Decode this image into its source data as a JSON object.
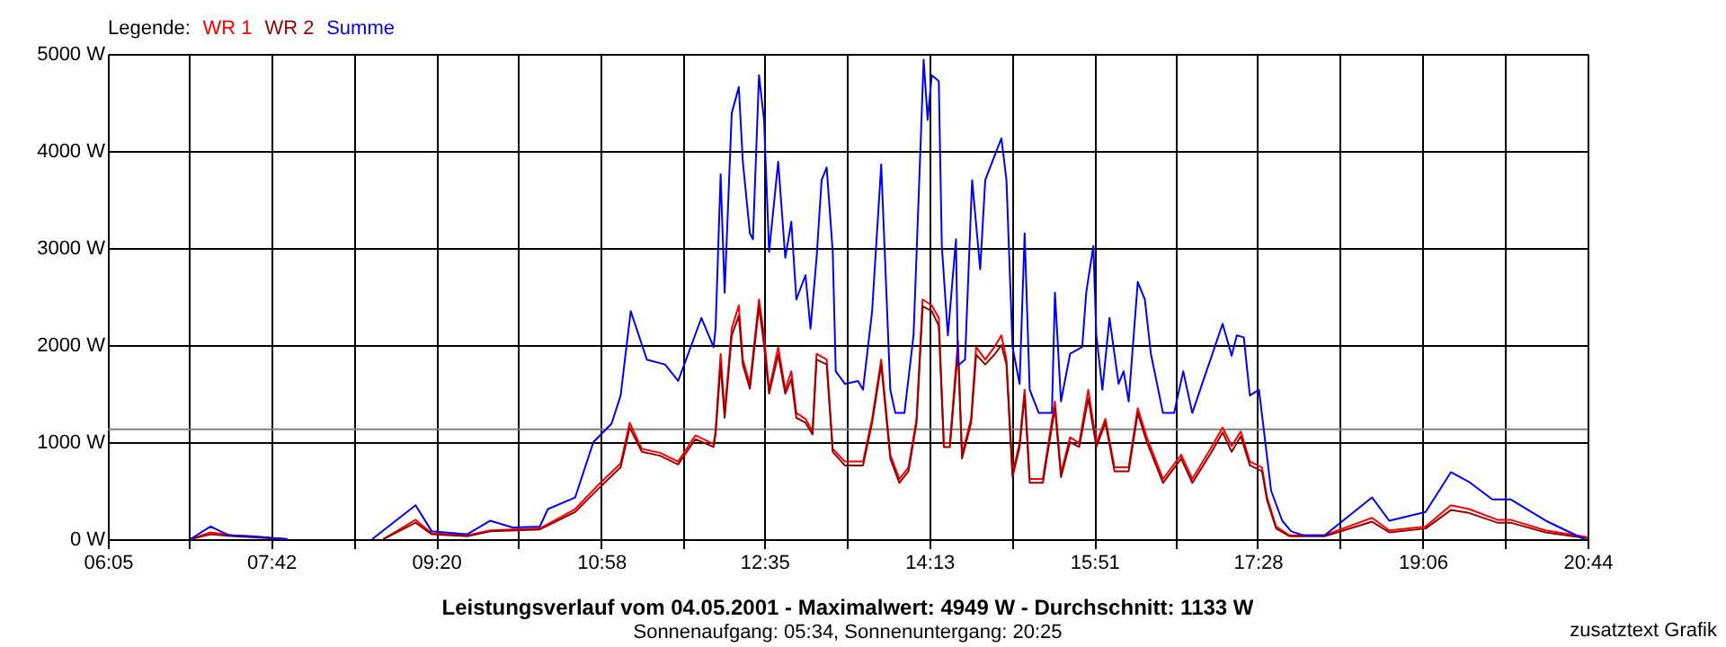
{
  "chart_data": {
    "type": "line",
    "title": "Leistungsverlauf vom 04.05.2001 - Maximalwert: 4949 W - Durchschnitt: 1133 W",
    "subtitle": "Sonnenaufgang: 05:34, Sonnenuntergang: 20:25",
    "legend_title": "Legende:",
    "annotations": [
      "zusatztext Grafik"
    ],
    "xlim": [
      6.0833,
      20.7333
    ],
    "xticks": [
      {
        "value": 6.0833,
        "label": "06:05"
      },
      {
        "value": 6.8917,
        "label": null
      },
      {
        "value": 7.7,
        "label": "07:42"
      },
      {
        "value": 8.5167,
        "label": null
      },
      {
        "value": 9.3333,
        "label": "09:20"
      },
      {
        "value": 10.15,
        "label": null
      },
      {
        "value": 10.9667,
        "label": "10:58"
      },
      {
        "value": 11.775,
        "label": null
      },
      {
        "value": 12.5833,
        "label": "12:35"
      },
      {
        "value": 13.4,
        "label": null
      },
      {
        "value": 14.2167,
        "label": "14:13"
      },
      {
        "value": 15.0333,
        "label": null
      },
      {
        "value": 15.85,
        "label": "15:51"
      },
      {
        "value": 16.6583,
        "label": null
      },
      {
        "value": 17.4667,
        "label": "17:28"
      },
      {
        "value": 18.2833,
        "label": null
      },
      {
        "value": 19.1,
        "label": "19:06"
      },
      {
        "value": 19.9167,
        "label": null
      },
      {
        "value": 20.7333,
        "label": "20:44"
      }
    ],
    "ylim": [
      0,
      5000
    ],
    "yticks": [
      {
        "value": 0,
        "label": "0 W"
      },
      {
        "value": 1000,
        "label": "1000 W"
      },
      {
        "value": 2000,
        "label": "2000 W"
      },
      {
        "value": 3000,
        "label": "3000 W"
      },
      {
        "value": 4000,
        "label": "4000 W"
      },
      {
        "value": 5000,
        "label": "5000 W"
      }
    ],
    "grid": true,
    "legend": "top left",
    "marker": "none",
    "line_style": "solid",
    "ref_lines": [
      {
        "axis": "y",
        "value": 1133,
        "color": "#808080"
      }
    ],
    "series": [
      {
        "name": "WR 1",
        "color": "#ff0000",
        "x": [
          6.9,
          7.1,
          7.33,
          7.86,
          8.3,
          8.81,
          9.13,
          9.29,
          9.64,
          9.87,
          10.36,
          10.71,
          10.94,
          11.16,
          11.25,
          11.37,
          11.55,
          11.73,
          11.9,
          12.08,
          12.1,
          12.15,
          12.19,
          12.26,
          12.33,
          12.37,
          12.44,
          12.53,
          12.58,
          12.63,
          12.72,
          12.79,
          12.85,
          12.9,
          12.99,
          13.06,
          13.1,
          13.2,
          13.26,
          13.38,
          13.56,
          13.65,
          13.74,
          13.83,
          13.92,
          14.01,
          14.09,
          14.15,
          14.24,
          14.31,
          14.36,
          14.42,
          14.5,
          14.54,
          14.63,
          14.68,
          14.77,
          14.86,
          14.93,
          14.98,
          15.04,
          15.11,
          15.16,
          15.21,
          15.34,
          15.46,
          15.52,
          15.61,
          15.7,
          15.79,
          15.87,
          15.96,
          16.05,
          16.19,
          16.28,
          16.37,
          16.53,
          16.71,
          16.82,
          17.0,
          17.12,
          17.21,
          17.3,
          17.39,
          17.51,
          17.56,
          17.65,
          17.78,
          18.13,
          18.6,
          18.77,
          19.13,
          19.38,
          19.56,
          19.84,
          19.97,
          20.32,
          20.73
        ],
        "values": [
          0,
          70,
          40,
          0,
          null,
          0,
          200,
          60,
          40,
          90,
          110,
          310,
          560,
          780,
          1200,
          930,
          890,
          800,
          1070,
          980,
          1110,
          1910,
          1300,
          2170,
          2410,
          1850,
          1600,
          2470,
          2100,
          1540,
          1980,
          1540,
          1730,
          1300,
          1240,
          1110,
          1910,
          1850,
          930,
          800,
          800,
          1240,
          1850,
          870,
          620,
          740,
          1240,
          2470,
          2410,
          2280,
          990,
          990,
          2040,
          870,
          1240,
          1980,
          1850,
          1980,
          2100,
          1850,
          680,
          990,
          1540,
          620,
          620,
          1420,
          680,
          1050,
          990,
          1540,
          990,
          1240,
          740,
          740,
          1350,
          1050,
          620,
          870,
          620,
          930,
          1150,
          960,
          1110,
          800,
          740,
          430,
          130,
          40,
          40,
          220,
          90,
          130,
          350,
          310,
          200,
          200,
          90,
          20
        ]
      },
      {
        "name": "WR 2",
        "color": "#990000",
        "x": [
          6.9,
          7.1,
          7.33,
          7.86,
          8.3,
          8.81,
          9.13,
          9.29,
          9.64,
          9.87,
          10.36,
          10.71,
          10.94,
          11.16,
          11.25,
          11.37,
          11.55,
          11.73,
          11.9,
          12.08,
          12.1,
          12.15,
          12.19,
          12.26,
          12.33,
          12.37,
          12.44,
          12.53,
          12.58,
          12.63,
          12.72,
          12.79,
          12.85,
          12.9,
          12.99,
          13.06,
          13.1,
          13.2,
          13.26,
          13.38,
          13.56,
          13.65,
          13.74,
          13.83,
          13.92,
          14.01,
          14.09,
          14.15,
          14.24,
          14.31,
          14.36,
          14.42,
          14.5,
          14.54,
          14.63,
          14.68,
          14.77,
          14.86,
          14.93,
          14.98,
          15.04,
          15.11,
          15.16,
          15.21,
          15.34,
          15.46,
          15.52,
          15.61,
          15.7,
          15.79,
          15.87,
          15.96,
          16.05,
          16.19,
          16.28,
          16.37,
          16.53,
          16.71,
          16.82,
          17.0,
          17.12,
          17.21,
          17.3,
          17.39,
          17.51,
          17.56,
          17.65,
          17.78,
          18.13,
          18.6,
          18.77,
          19.13,
          19.38,
          19.56,
          19.84,
          19.97,
          20.32,
          20.73
        ],
        "values": [
          0,
          50,
          30,
          0,
          null,
          0,
          170,
          50,
          30,
          80,
          100,
          280,
          520,
          740,
          1150,
          900,
          860,
          770,
          1030,
          950,
          1080,
          1800,
          1250,
          2100,
          2300,
          1800,
          1550,
          2400,
          2000,
          1500,
          1900,
          1500,
          1650,
          1250,
          1200,
          1080,
          1850,
          1800,
          900,
          760,
          760,
          1200,
          1800,
          830,
          580,
          700,
          1200,
          2400,
          2350,
          2200,
          950,
          950,
          1950,
          830,
          1200,
          1900,
          1800,
          1900,
          2000,
          1800,
          640,
          950,
          1480,
          580,
          580,
          1350,
          640,
          1000,
          950,
          1450,
          950,
          1200,
          700,
          700,
          1300,
          1000,
          580,
          830,
          580,
          880,
          1100,
          900,
          1060,
          760,
          700,
          400,
          110,
          30,
          30,
          180,
          70,
          110,
          300,
          270,
          170,
          170,
          70,
          10
        ]
      },
      {
        "name": "Summe",
        "color": "#0000ff",
        "x": [
          6.9,
          7.1,
          7.28,
          7.51,
          7.86,
          8.3,
          8.7,
          9.13,
          9.29,
          9.64,
          9.87,
          10.09,
          10.36,
          10.44,
          10.71,
          10.89,
          11.07,
          11.16,
          11.26,
          11.42,
          11.6,
          11.73,
          11.96,
          12.08,
          12.1,
          12.15,
          12.19,
          12.26,
          12.33,
          12.37,
          12.44,
          12.47,
          12.53,
          12.58,
          12.63,
          12.72,
          12.79,
          12.85,
          12.9,
          12.99,
          13.04,
          13.1,
          13.15,
          13.2,
          13.26,
          13.29,
          13.38,
          13.51,
          13.56,
          13.65,
          13.74,
          13.83,
          13.88,
          13.97,
          14.06,
          14.13,
          14.16,
          14.2,
          14.24,
          14.31,
          14.34,
          14.4,
          14.48,
          14.5,
          14.57,
          14.64,
          14.72,
          14.77,
          14.84,
          14.93,
          14.98,
          15.04,
          15.11,
          15.16,
          15.21,
          15.3,
          15.43,
          15.46,
          15.52,
          15.61,
          15.73,
          15.77,
          15.84,
          15.87,
          15.93,
          16.0,
          16.09,
          16.14,
          16.19,
          16.28,
          16.35,
          16.41,
          16.53,
          16.64,
          16.73,
          16.82,
          16.94,
          17.0,
          17.12,
          17.21,
          17.26,
          17.33,
          17.39,
          17.48,
          17.53,
          17.6,
          17.71,
          17.8,
          17.92,
          18.13,
          18.6,
          18.77,
          19.13,
          19.38,
          19.56,
          19.79,
          19.97,
          20.32,
          20.7
        ],
        "values": [
          0,
          130,
          40,
          30,
          0,
          null,
          0,
          350,
          80,
          50,
          190,
          120,
          130,
          310,
          430,
          1000,
          1190,
          1480,
          2350,
          1850,
          1800,
          1630,
          2280,
          1980,
          2170,
          3760,
          2540,
          4390,
          4660,
          3890,
          3150,
          3090,
          4780,
          4320,
          2960,
          3890,
          2900,
          3270,
          2470,
          2720,
          2170,
          2900,
          3700,
          3830,
          2960,
          1730,
          1600,
          1630,
          1540,
          2350,
          3860,
          1540,
          1300,
          1300,
          2100,
          4070,
          4940,
          4320,
          4780,
          4720,
          3020,
          2100,
          3090,
          1790,
          1850,
          3700,
          2780,
          3700,
          3890,
          4130,
          3700,
          1980,
          1600,
          3150,
          1540,
          1300,
          1300,
          2540,
          1420,
          1910,
          1980,
          2540,
          3020,
          2100,
          1540,
          2280,
          1600,
          1730,
          1420,
          2650,
          2470,
          1910,
          1300,
          1300,
          1730,
          1300,
          1670,
          1850,
          2220,
          1890,
          2100,
          2080,
          1480,
          1540,
          1110,
          500,
          190,
          80,
          40,
          40,
          430,
          190,
          280,
          690,
          590,
          410,
          410,
          190,
          0
        ]
      }
    ]
  }
}
